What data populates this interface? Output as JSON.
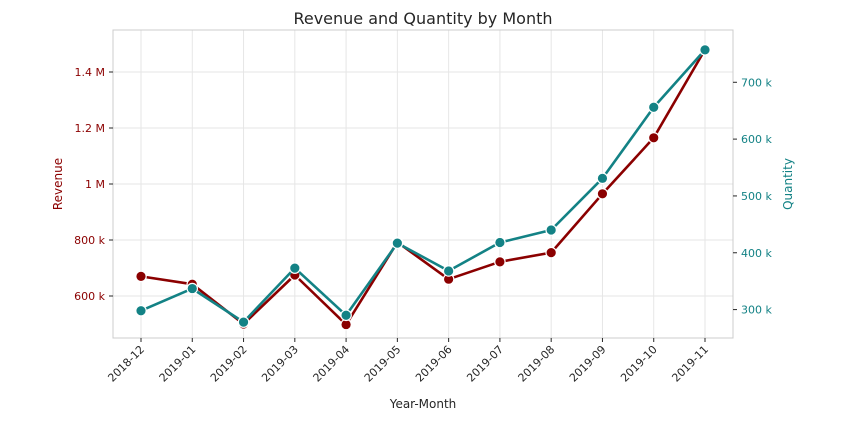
{
  "chart_data": {
    "type": "line",
    "title": "Revenue and Quantity by Month",
    "xlabel": "Year-Month",
    "categories": [
      "2018-12",
      "2019-01",
      "2019-02",
      "2019-03",
      "2019-04",
      "2019-05",
      "2019-06",
      "2019-07",
      "2019-08",
      "2019-09",
      "2019-10",
      "2019-11"
    ],
    "y_left": {
      "label": "Revenue",
      "ticks": [
        600000,
        800000,
        1000000,
        1200000,
        1400000
      ],
      "tick_labels": [
        "600 k",
        "800 k",
        "1 M",
        "1.2 M",
        "1.4 M"
      ],
      "ylim": [
        450000,
        1550000
      ],
      "color": "#8b0000"
    },
    "y_right": {
      "label": "Quantity",
      "ticks": [
        300000,
        400000,
        500000,
        600000,
        700000
      ],
      "tick_labels": [
        "300 k",
        "400 k",
        "500 k",
        "600 k",
        "700 k"
      ],
      "ylim": [
        250000,
        792000
      ],
      "color": "#138285"
    },
    "series": [
      {
        "axis": "left",
        "color": "#8b0000",
        "values": [
          670000,
          642000,
          500000,
          675000,
          498000,
          792000,
          660000,
          722000,
          755000,
          965000,
          1165000,
          1480000
        ]
      },
      {
        "axis": "right",
        "color": "#138285",
        "values": [
          298000,
          337000,
          278000,
          373000,
          290000,
          417000,
          368000,
          418000,
          440000,
          531000,
          656000,
          757000
        ]
      }
    ],
    "grid": true
  }
}
